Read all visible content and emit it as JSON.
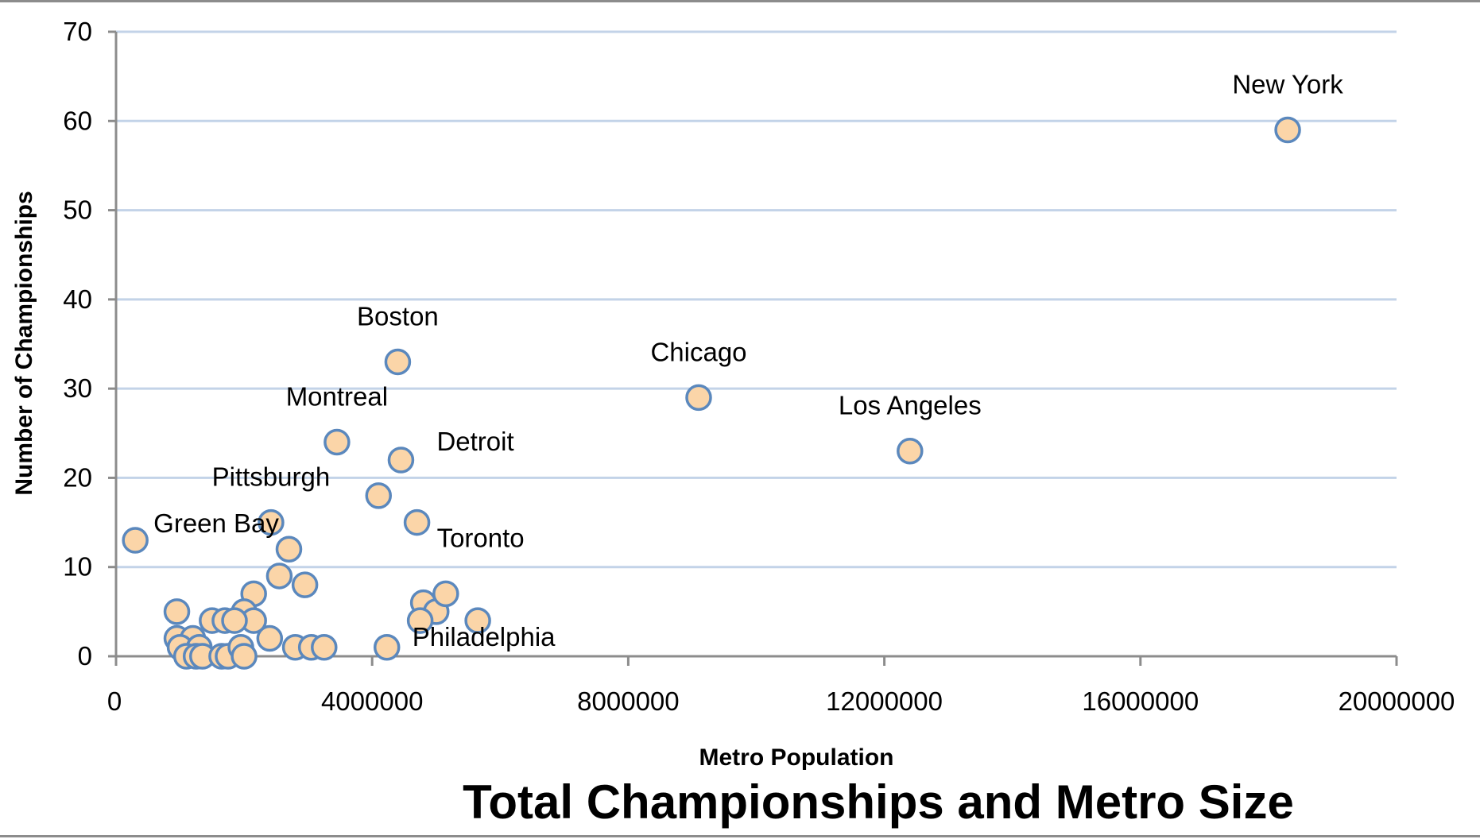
{
  "chart_data": {
    "type": "scatter",
    "title": "Total Championships and Metro Size",
    "xlabel": "Metro Population",
    "ylabel": "Number of Championships",
    "xlim": [
      0,
      20000000
    ],
    "ylim": [
      0,
      70
    ],
    "x_ticks": [
      0,
      4000000,
      8000000,
      12000000,
      16000000,
      20000000
    ],
    "x_tick_labels": [
      "0",
      "4000000",
      "8000000",
      "12000000",
      "16000000",
      "20000000"
    ],
    "y_ticks": [
      0,
      10,
      20,
      30,
      40,
      50,
      60,
      70
    ],
    "y_tick_labels": [
      "0",
      "10",
      "20",
      "30",
      "40",
      "50",
      "60",
      "70"
    ],
    "grid": "horizontal",
    "marker_fill": "#fbd5a8",
    "marker_stroke": "#5b88bd",
    "grid_color": "#c3d3e8",
    "points": [
      {
        "x": 18300000,
        "y": 59,
        "label": "New York"
      },
      {
        "x": 9100000,
        "y": 29,
        "label": "Chicago"
      },
      {
        "x": 12400000,
        "y": 23,
        "label": "Los Angeles"
      },
      {
        "x": 4400000,
        "y": 33,
        "label": "Boston"
      },
      {
        "x": 3450000,
        "y": 24,
        "label": "Montreal"
      },
      {
        "x": 4450000,
        "y": 22,
        "label": "Detroit"
      },
      {
        "x": 2420000,
        "y": 15,
        "label": "Pittsburgh"
      },
      {
        "x": 4700000,
        "y": 15,
        "label": "Toronto"
      },
      {
        "x": 300000,
        "y": 13,
        "label": "Green Bay"
      },
      {
        "x": 4230000,
        "y": 1,
        "label": "Philadelphia"
      },
      {
        "x": 4100000,
        "y": 18,
        "label": ""
      },
      {
        "x": 2700000,
        "y": 12,
        "label": ""
      },
      {
        "x": 2550000,
        "y": 9,
        "label": ""
      },
      {
        "x": 2950000,
        "y": 8,
        "label": ""
      },
      {
        "x": 2150000,
        "y": 7,
        "label": ""
      },
      {
        "x": 2000000,
        "y": 5,
        "label": ""
      },
      {
        "x": 2150000,
        "y": 4,
        "label": ""
      },
      {
        "x": 1500000,
        "y": 4,
        "label": ""
      },
      {
        "x": 1700000,
        "y": 4,
        "label": ""
      },
      {
        "x": 1850000,
        "y": 4,
        "label": ""
      },
      {
        "x": 950000,
        "y": 5,
        "label": ""
      },
      {
        "x": 950000,
        "y": 2,
        "label": ""
      },
      {
        "x": 1200000,
        "y": 2,
        "label": ""
      },
      {
        "x": 1000000,
        "y": 1,
        "label": ""
      },
      {
        "x": 1300000,
        "y": 1,
        "label": ""
      },
      {
        "x": 1100000,
        "y": 0,
        "label": ""
      },
      {
        "x": 1250000,
        "y": 0,
        "label": ""
      },
      {
        "x": 1350000,
        "y": 0,
        "label": ""
      },
      {
        "x": 1650000,
        "y": 0,
        "label": ""
      },
      {
        "x": 1750000,
        "y": 0,
        "label": ""
      },
      {
        "x": 1950000,
        "y": 1,
        "label": ""
      },
      {
        "x": 2000000,
        "y": 0,
        "label": ""
      },
      {
        "x": 2400000,
        "y": 2,
        "label": ""
      },
      {
        "x": 2800000,
        "y": 1,
        "label": ""
      },
      {
        "x": 3050000,
        "y": 1,
        "label": ""
      },
      {
        "x": 3250000,
        "y": 1,
        "label": ""
      },
      {
        "x": 4800000,
        "y": 6,
        "label": ""
      },
      {
        "x": 5000000,
        "y": 5,
        "label": ""
      },
      {
        "x": 5150000,
        "y": 7,
        "label": ""
      },
      {
        "x": 4750000,
        "y": 4,
        "label": ""
      },
      {
        "x": 5650000,
        "y": 4,
        "label": ""
      }
    ]
  }
}
